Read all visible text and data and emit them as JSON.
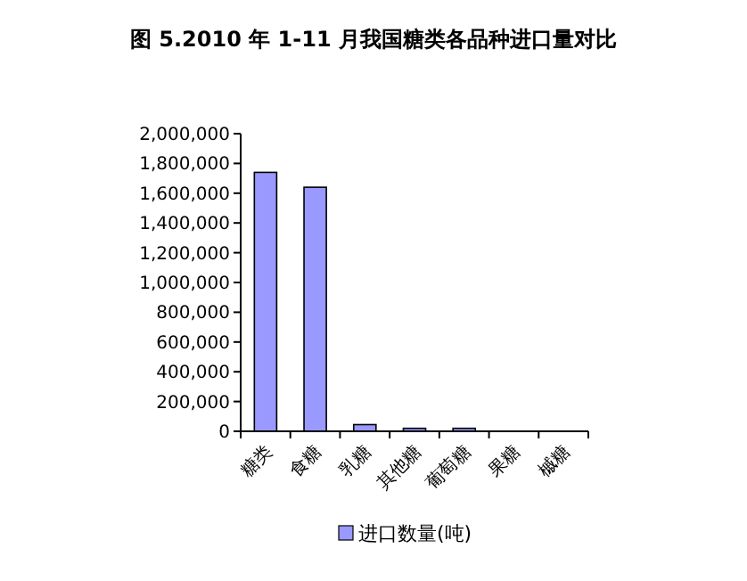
{
  "chart_data": {
    "type": "bar",
    "title": "图 5.2010 年 1-11 月我国糖类各品种进口量对比",
    "categories": [
      "糖类",
      "食糖",
      "乳糖",
      "其他糖",
      "葡萄糖",
      "果糖",
      "槭糖"
    ],
    "series": [
      {
        "name": "进口数量(吨)",
        "color": "#9999ff",
        "values": [
          1740000,
          1640000,
          45000,
          20000,
          20000,
          0,
          0
        ]
      }
    ],
    "ylim": [
      0,
      2000000
    ],
    "yticks": [
      {
        "value": 0,
        "label": "0"
      },
      {
        "value": 200000,
        "label": "200,000"
      },
      {
        "value": 400000,
        "label": "400,000"
      },
      {
        "value": 600000,
        "label": "600,000"
      },
      {
        "value": 800000,
        "label": "800,000"
      },
      {
        "value": 1000000,
        "label": "1,000,000"
      },
      {
        "value": 1200000,
        "label": "1,200,000"
      },
      {
        "value": 1400000,
        "label": "1,400,000"
      },
      {
        "value": 1600000,
        "label": "1,600,000"
      },
      {
        "value": 1800000,
        "label": "1,800,000"
      },
      {
        "value": 2000000,
        "label": "2,000,000"
      }
    ],
    "grid": false,
    "legend": "bottom"
  }
}
